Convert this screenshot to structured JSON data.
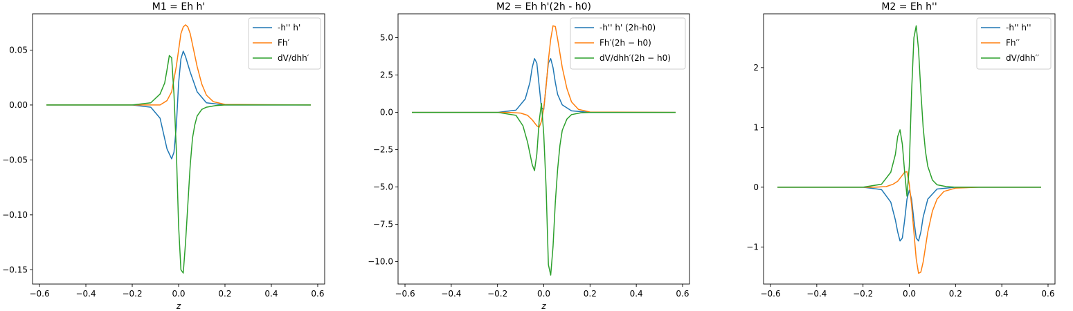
{
  "figure": {
    "background": "#ffffff"
  },
  "chart_data": [
    {
      "type": "line",
      "title": "M1 = Eh h'",
      "xlabel": "z",
      "ylabel": "",
      "xlim": [
        -0.63,
        0.63
      ],
      "ylim": [
        -0.163,
        0.083
      ],
      "xticks": [
        -0.6,
        -0.4,
        -0.2,
        0.0,
        0.2,
        0.4,
        0.6
      ],
      "xtick_labels": [
        "−0.6",
        "−0.4",
        "−0.2",
        "0.0",
        "0.2",
        "0.4",
        "0.6"
      ],
      "yticks": [
        0.05,
        0.0,
        -0.05,
        -0.1,
        -0.15
      ],
      "ytick_labels": [
        "0.05",
        "0.00",
        "−0.05",
        "−0.10",
        "−0.15"
      ],
      "legend": "top-right",
      "series": [
        {
          "name": "-h'' h'",
          "color": "#1f77b4",
          "x": [
            -0.57,
            -0.2,
            -0.12,
            -0.08,
            -0.05,
            -0.03,
            -0.02,
            -0.01,
            0.0,
            0.01,
            0.02,
            0.03,
            0.05,
            0.08,
            0.12,
            0.2,
            0.57
          ],
          "y": [
            0,
            0,
            -0.002,
            -0.012,
            -0.04,
            -0.049,
            -0.043,
            -0.02,
            0.02,
            0.042,
            0.049,
            0.044,
            0.03,
            0.012,
            0.002,
            0,
            0
          ]
        },
        {
          "name": "Fh′",
          "color": "#ff7f0e",
          "x": [
            -0.57,
            -0.15,
            -0.08,
            -0.05,
            -0.03,
            -0.01,
            0.0,
            0.01,
            0.02,
            0.03,
            0.04,
            0.05,
            0.06,
            0.08,
            0.1,
            0.12,
            0.15,
            0.2,
            0.57
          ],
          "y": [
            0,
            0,
            0.0,
            0.004,
            0.012,
            0.035,
            0.05,
            0.065,
            0.071,
            0.073,
            0.071,
            0.065,
            0.055,
            0.035,
            0.019,
            0.009,
            0.003,
            0.0005,
            0
          ]
        },
        {
          "name": "dV/dhh′",
          "color": "#2ca02c",
          "x": [
            -0.57,
            -0.2,
            -0.12,
            -0.08,
            -0.06,
            -0.05,
            -0.04,
            -0.03,
            -0.02,
            -0.01,
            0.0,
            0.01,
            0.02,
            0.03,
            0.04,
            0.05,
            0.06,
            0.07,
            0.08,
            0.1,
            0.12,
            0.16,
            0.2,
            0.57
          ],
          "y": [
            0,
            0,
            0.002,
            0.01,
            0.02,
            0.032,
            0.045,
            0.043,
            0.01,
            -0.04,
            -0.11,
            -0.15,
            -0.153,
            -0.125,
            -0.09,
            -0.055,
            -0.03,
            -0.018,
            -0.01,
            -0.004,
            -0.002,
            -0.0005,
            0,
            0
          ]
        }
      ]
    },
    {
      "type": "line",
      "title": "M2 = Eh h'(2h - h0)",
      "xlabel": "z",
      "ylabel": "",
      "xlim": [
        -0.63,
        0.63
      ],
      "ylim": [
        -11.5,
        6.6
      ],
      "xticks": [
        -0.6,
        -0.4,
        -0.2,
        0.0,
        0.2,
        0.4,
        0.6
      ],
      "xtick_labels": [
        "−0.6",
        "−0.4",
        "−0.2",
        "0.0",
        "0.2",
        "0.4",
        "0.6"
      ],
      "yticks": [
        5.0,
        2.5,
        0.0,
        -2.5,
        -5.0,
        -7.5,
        -10.0
      ],
      "ytick_labels": [
        "5.0",
        "2.5",
        "0.0",
        "−2.5",
        "−5.0",
        "−7.5",
        "−10.0"
      ],
      "legend": "top-right",
      "series": [
        {
          "name": "-h'' h' (2h-h0)",
          "color": "#1f77b4",
          "x": [
            -0.57,
            -0.2,
            -0.12,
            -0.08,
            -0.06,
            -0.05,
            -0.04,
            -0.03,
            -0.02,
            -0.01,
            0.0,
            0.01,
            0.02,
            0.03,
            0.04,
            0.05,
            0.06,
            0.08,
            0.12,
            0.2,
            0.57
          ],
          "y": [
            0,
            0,
            0.15,
            0.9,
            2.0,
            3.0,
            3.6,
            3.3,
            1.8,
            0.3,
            0.2,
            1.8,
            3.3,
            3.6,
            3.0,
            2.0,
            1.2,
            0.5,
            0.1,
            0,
            0
          ]
        },
        {
          "name": "Fh′(2h − h0)",
          "color": "#ff7f0e",
          "x": [
            -0.57,
            -0.15,
            -0.1,
            -0.07,
            -0.05,
            -0.03,
            -0.02,
            -0.01,
            0.0,
            0.01,
            0.02,
            0.03,
            0.04,
            0.05,
            0.06,
            0.08,
            0.1,
            0.12,
            0.15,
            0.2,
            0.57
          ],
          "y": [
            0,
            0,
            -0.05,
            -0.2,
            -0.5,
            -0.9,
            -1.0,
            -0.6,
            0.3,
            1.7,
            3.5,
            4.9,
            5.8,
            5.75,
            4.9,
            3.0,
            1.6,
            0.7,
            0.2,
            0.02,
            0
          ]
        },
        {
          "name": "dV/dhh′(2h − h0)",
          "color": "#2ca02c",
          "x": [
            -0.57,
            -0.2,
            -0.12,
            -0.09,
            -0.07,
            -0.05,
            -0.04,
            -0.03,
            -0.02,
            -0.01,
            0.0,
            0.01,
            0.02,
            0.03,
            0.04,
            0.05,
            0.06,
            0.07,
            0.08,
            0.1,
            0.12,
            0.16,
            0.2,
            0.57
          ],
          "y": [
            0,
            0,
            -0.2,
            -0.9,
            -2.0,
            -3.5,
            -3.9,
            -2.8,
            -0.6,
            0.6,
            -1.5,
            -5.0,
            -10.2,
            -10.9,
            -9.0,
            -6.0,
            -3.8,
            -2.2,
            -1.2,
            -0.45,
            -0.15,
            -0.03,
            0,
            0
          ]
        }
      ]
    },
    {
      "type": "line",
      "title": "M2 = Eh h''",
      "xlabel": "",
      "ylabel": "",
      "xlim": [
        -0.63,
        0.63
      ],
      "ylim": [
        -1.62,
        2.9
      ],
      "xticks": [
        -0.6,
        -0.4,
        -0.2,
        0.0,
        0.2,
        0.4,
        0.6
      ],
      "xtick_labels": [
        "−0.6",
        "−0.4",
        "−0.2",
        "0.0",
        "0.2",
        "0.4",
        "0.6"
      ],
      "yticks": [
        2,
        1,
        0,
        -1
      ],
      "ytick_labels": [
        "2",
        "1",
        "0",
        "−1"
      ],
      "legend": "top-right",
      "series": [
        {
          "name": "-h'' h''",
          "color": "#1f77b4",
          "x": [
            -0.57,
            -0.2,
            -0.12,
            -0.08,
            -0.06,
            -0.05,
            -0.04,
            -0.03,
            -0.02,
            -0.01,
            0.0,
            0.01,
            0.02,
            0.03,
            0.04,
            0.05,
            0.06,
            0.08,
            0.12,
            0.2,
            0.57
          ],
          "y": [
            0,
            0,
            -0.04,
            -0.25,
            -0.55,
            -0.75,
            -0.9,
            -0.85,
            -0.55,
            -0.2,
            -0.05,
            -0.2,
            -0.55,
            -0.85,
            -0.9,
            -0.75,
            -0.5,
            -0.2,
            -0.03,
            0,
            0
          ]
        },
        {
          "name": "Fh′′",
          "color": "#ff7f0e",
          "x": [
            -0.57,
            -0.15,
            -0.1,
            -0.07,
            -0.05,
            -0.03,
            -0.02,
            -0.01,
            0.0,
            0.01,
            0.02,
            0.03,
            0.04,
            0.05,
            0.06,
            0.07,
            0.08,
            0.1,
            0.12,
            0.15,
            0.2,
            0.3,
            0.57
          ],
          "y": [
            0,
            0,
            0.01,
            0.05,
            0.1,
            0.2,
            0.25,
            0.26,
            0.05,
            -0.3,
            -0.75,
            -1.2,
            -1.44,
            -1.42,
            -1.25,
            -1.0,
            -0.75,
            -0.4,
            -0.2,
            -0.07,
            -0.015,
            0,
            0
          ]
        },
        {
          "name": "dV/dhh′′",
          "color": "#2ca02c",
          "x": [
            -0.57,
            -0.2,
            -0.12,
            -0.08,
            -0.06,
            -0.05,
            -0.04,
            -0.03,
            -0.02,
            -0.01,
            0.0,
            0.01,
            0.02,
            0.03,
            0.04,
            0.05,
            0.06,
            0.07,
            0.08,
            0.1,
            0.12,
            0.16,
            0.2,
            0.57
          ],
          "y": [
            0,
            0,
            0.05,
            0.25,
            0.55,
            0.85,
            0.96,
            0.72,
            0.25,
            -0.15,
            0.35,
            1.6,
            2.5,
            2.7,
            2.3,
            1.6,
            1.0,
            0.6,
            0.35,
            0.12,
            0.04,
            0.01,
            0,
            0
          ]
        }
      ]
    }
  ]
}
